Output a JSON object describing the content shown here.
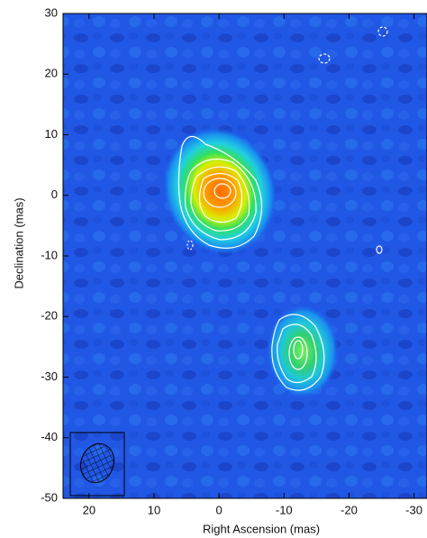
{
  "chart_data": {
    "type": "contour",
    "xlabel": "Right Ascension (mas)",
    "ylabel": "Declination (mas)",
    "xlim": [
      24,
      -32
    ],
    "ylim": [
      -50,
      30
    ],
    "xticks": [
      20,
      10,
      0,
      -10,
      -20,
      -30
    ],
    "yticks": [
      30,
      20,
      10,
      0,
      -10,
      -20,
      -30,
      -40,
      -50
    ]
  }
}
